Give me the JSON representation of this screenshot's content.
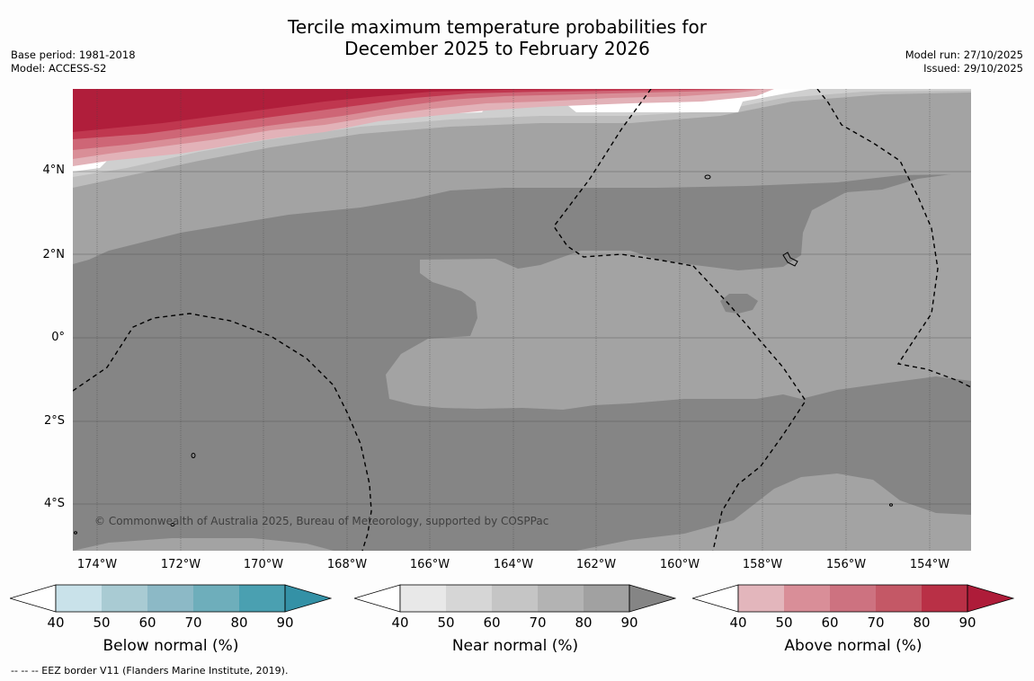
{
  "title": {
    "line1": "Tercile maximum temperature probabilities for",
    "line2": "December 2025 to February 2026"
  },
  "meta_left": {
    "base_period": "Base period: 1981-2018",
    "model": "Model: ACCESS-S2"
  },
  "meta_right": {
    "model_run": "Model run: 27/10/2025",
    "issued": "Issued: 29/10/2025"
  },
  "map": {
    "lat_labels": [
      "4°N",
      "2°N",
      "0°",
      "2°S",
      "4°S"
    ],
    "lon_labels": [
      "174°W",
      "172°W",
      "170°W",
      "168°W",
      "166°W",
      "164°W",
      "162°W",
      "160°W",
      "158°W",
      "156°W",
      "154°W"
    ],
    "copyright": "© Commonwealth of Australia 2025, Bureau of Meteorology, supported by COSPPac",
    "colors": {
      "near_90": "#858585",
      "near_80": "#a3a3a3",
      "near_70": "#bdbdbd",
      "near_60": "#cfcfcf",
      "above_90": "#b01e3b",
      "above_80": "#c0374f",
      "above_70": "#ce6676",
      "above_60": "#d98e97",
      "above_50": "#e2b2b8"
    }
  },
  "colorbars": [
    {
      "label": "Below normal (%)",
      "ticks": [
        "40",
        "50",
        "60",
        "70",
        "80",
        "90"
      ],
      "colors": [
        "#c9e2ea",
        "#a9cbd3",
        "#8cb9c6",
        "#6eaebb",
        "#4aa0b1",
        "#3491a6"
      ]
    },
    {
      "label": "Near normal (%)",
      "ticks": [
        "40",
        "50",
        "60",
        "70",
        "80",
        "90"
      ],
      "colors": [
        "#e8e8e8",
        "#d6d6d6",
        "#c5c5c5",
        "#b3b3b3",
        "#a1a1a1",
        "#858585"
      ]
    },
    {
      "label": "Above normal (%)",
      "ticks": [
        "40",
        "50",
        "60",
        "70",
        "80",
        "90"
      ],
      "colors": [
        "#e3b6bc",
        "#d98e98",
        "#cd7280",
        "#c45866",
        "#b93046",
        "#ae1c39"
      ]
    }
  ],
  "footnote": "--  --  -- EEZ border V11 (Flanders Marine Institute, 2019)."
}
